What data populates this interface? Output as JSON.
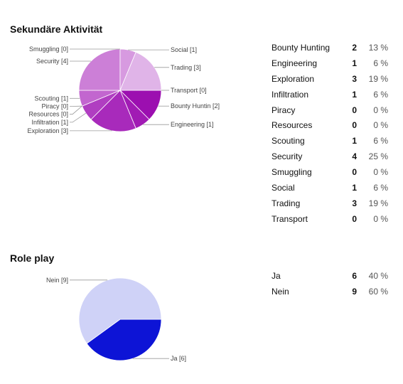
{
  "sections": [
    {
      "title": "Sekundäre Aktivität"
    },
    {
      "title": "Role play"
    }
  ],
  "chart_data": [
    {
      "type": "pie",
      "title": "Sekundäre Aktivität",
      "slices": [
        {
          "label": "Bounty Hunting",
          "pie_label": "Bounty Huntin [2]",
          "value": 2,
          "percent": "13 %",
          "color": "#9c0fb0",
          "side": "right"
        },
        {
          "label": "Engineering",
          "pie_label": "Engineering [1]",
          "value": 1,
          "percent": "6 %",
          "color": "#a11bb4",
          "side": "right"
        },
        {
          "label": "Exploration",
          "pie_label": "Exploration [3]",
          "value": 3,
          "percent": "19 %",
          "color": "#a82abb",
          "side": "left"
        },
        {
          "label": "Infiltration",
          "pie_label": "Infiltration [1]",
          "value": 1,
          "percent": "6 %",
          "color": "#b03ec1",
          "side": "left"
        },
        {
          "label": "Piracy",
          "pie_label": "Piracy [0]",
          "value": 0,
          "percent": "0 %",
          "color": "#b64cc6",
          "side": "left"
        },
        {
          "label": "Resources",
          "pie_label": "Resources [0]",
          "value": 0,
          "percent": "0 %",
          "color": "#bb58ca",
          "side": "left"
        },
        {
          "label": "Scouting",
          "pie_label": "Scouting [1]",
          "value": 1,
          "percent": "6 %",
          "color": "#c266cf",
          "side": "left"
        },
        {
          "label": "Security",
          "pie_label": "Security [4]",
          "value": 4,
          "percent": "25 %",
          "color": "#cc7fd7",
          "side": "left"
        },
        {
          "label": "Smuggling",
          "pie_label": "Smuggling [0]",
          "value": 0,
          "percent": "0 %",
          "color": "#d28cdb",
          "side": "left"
        },
        {
          "label": "Social",
          "pie_label": "Social [1]",
          "value": 1,
          "percent": "6 %",
          "color": "#d79ae0",
          "side": "right"
        },
        {
          "label": "Trading",
          "pie_label": "Trading [3]",
          "value": 3,
          "percent": "19 %",
          "color": "#e0b4e8",
          "side": "right"
        },
        {
          "label": "Transport",
          "pie_label": "Transport [0]",
          "value": 0,
          "percent": "0 %",
          "color": "#e6c2ec",
          "side": "right"
        }
      ]
    },
    {
      "type": "pie",
      "title": "Role play",
      "slices": [
        {
          "label": "Ja",
          "pie_label": "Ja [6]",
          "value": 6,
          "percent": "40 %",
          "color": "#0d14d6",
          "side": "right"
        },
        {
          "label": "Nein",
          "pie_label": "Nein [9]",
          "value": 9,
          "percent": "60 %",
          "color": "#cfd2f7",
          "side": "left"
        }
      ]
    }
  ]
}
